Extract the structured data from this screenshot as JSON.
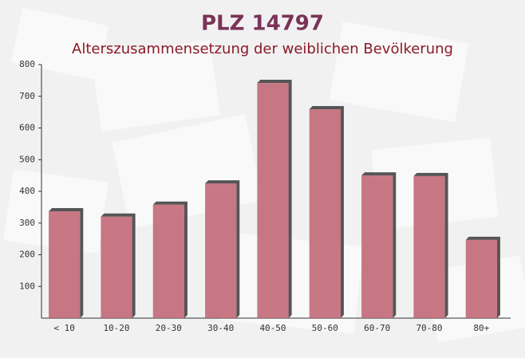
{
  "chart_data": {
    "type": "bar",
    "title": "PLZ 14797",
    "subtitle": "Alterszusammensetzung der weiblichen Bevölkerung",
    "categories": [
      "< 10",
      "10-20",
      "20-30",
      "30-40",
      "40-50",
      "50-60",
      "60-70",
      "70-80",
      "80+"
    ],
    "values": [
      337,
      320,
      358,
      425,
      742,
      659,
      450,
      448,
      247
    ],
    "color": "#c06070",
    "ylim": [
      0,
      800
    ],
    "yticks": [
      100,
      200,
      300,
      400,
      500,
      600,
      700,
      800
    ]
  }
}
